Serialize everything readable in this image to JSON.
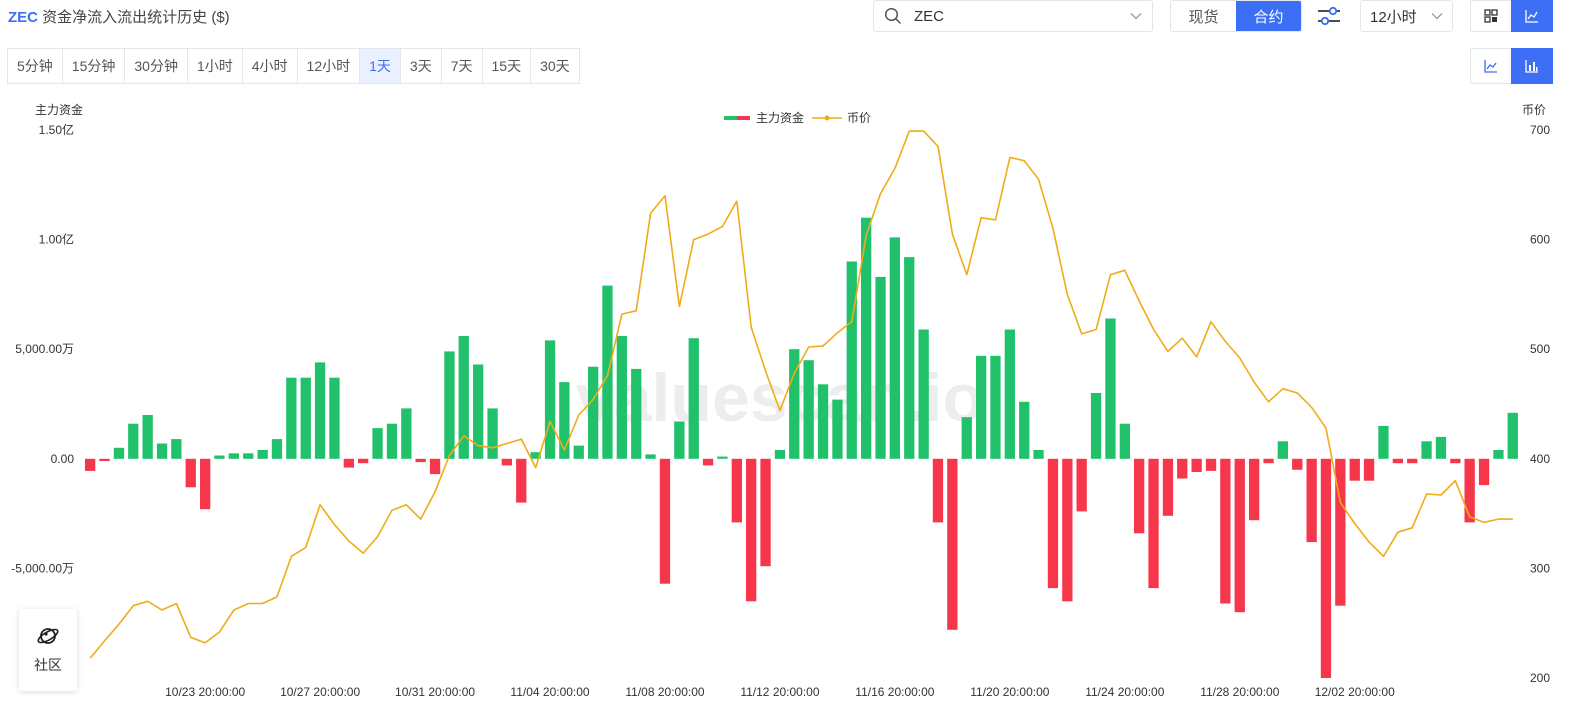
{
  "header": {
    "coin": "ZEC",
    "title_rest": " 资金净流入流出统计历史 ($)",
    "search_value": "ZEC",
    "market_tabs": [
      {
        "label": "现货",
        "active": false
      },
      {
        "label": "合约",
        "active": true
      }
    ],
    "interval_value": "12小时"
  },
  "periods": [
    {
      "label": "5分钟",
      "active": false
    },
    {
      "label": "15分钟",
      "active": false
    },
    {
      "label": "30分钟",
      "active": false
    },
    {
      "label": "1小时",
      "active": false
    },
    {
      "label": "4小时",
      "active": false
    },
    {
      "label": "12小时",
      "active": false
    },
    {
      "label": "1天",
      "active": true
    },
    {
      "label": "3天",
      "active": false
    },
    {
      "label": "7天",
      "active": false
    },
    {
      "label": "15天",
      "active": false
    },
    {
      "label": "30天",
      "active": false
    }
  ],
  "icons": {
    "search": "search-icon",
    "chevron": "chevron-down-icon",
    "filter": "sliders-icon",
    "grid_view": "grid-view-icon",
    "line_view": "line-chart-icon",
    "bar_view": "bar-chart-icon",
    "community": "planet-icon"
  },
  "colors": {
    "accent": "#3c6ff5",
    "inflow": "#21c16b",
    "outflow": "#f6364a",
    "price": "#f0ac18"
  },
  "community_label": "社区",
  "watermark": "valuescan.io",
  "chart_data": {
    "type": "bar",
    "title": "",
    "legend": [
      {
        "name": "主力资金",
        "type": "bar"
      },
      {
        "name": "币价",
        "type": "line"
      }
    ],
    "legend_position": "top-center",
    "y_left": {
      "label": "主力资金",
      "ticks": [
        15000,
        10000,
        5000,
        0,
        -5000
      ],
      "tick_labels": [
        "1.50亿",
        "1.00亿",
        "5,000.00万",
        "0.00",
        "-5,000.00万"
      ],
      "range": [
        -10000,
        15000
      ],
      "unit": "万"
    },
    "y_right": {
      "label": "币价",
      "ticks": [
        700,
        600,
        500,
        400,
        300,
        200
      ],
      "range": [
        200,
        700
      ]
    },
    "x_tick_labels": [
      "10/23 20:00:00",
      "10/27 20:00:00",
      "10/31 20:00:00",
      "11/04 20:00:00",
      "11/08 20:00:00",
      "11/12 20:00:00",
      "11/16 20:00:00",
      "11/20 20:00:00",
      "11/24 20:00:00",
      "11/28 20:00:00",
      "12/02 20:00:00"
    ],
    "x_tick_index": [
      8,
      16,
      24,
      32,
      40,
      48,
      56,
      64,
      72,
      80,
      88
    ],
    "net_flow": [
      -550,
      -100,
      500,
      1600,
      2000,
      700,
      900,
      -1300,
      -2300,
      150,
      250,
      250,
      400,
      900,
      3700,
      3700,
      4400,
      3700,
      -400,
      -200,
      1400,
      1600,
      2300,
      -150,
      -700,
      4900,
      5600,
      4300,
      2300,
      -300,
      -2000,
      300,
      5400,
      3500,
      600,
      4200,
      7900,
      5600,
      4100,
      200,
      -5700,
      1700,
      5500,
      -300,
      100,
      -2900,
      -6500,
      -4900,
      400,
      5000,
      4500,
      3400,
      2700,
      9000,
      11000,
      8300,
      10100,
      9200,
      5900,
      -2900,
      -7800,
      1900,
      4700,
      4700,
      5900,
      2600,
      400,
      -5900,
      -6500,
      -2400,
      3000,
      6400,
      1600,
      -3400,
      -5900,
      -2600,
      -900,
      -600,
      -550,
      -6600,
      -7000,
      -2800,
      -200,
      800,
      -500,
      -3800,
      -10000,
      -6700,
      -1000,
      -1000,
      1500,
      -200,
      -200,
      800,
      1000,
      -200,
      -2900,
      -1200,
      400,
      2100
    ],
    "price": [
      218,
      234,
      249,
      266,
      270,
      262,
      268,
      237,
      232,
      242,
      262,
      268,
      268,
      274,
      311,
      319,
      358,
      340,
      325,
      314,
      329,
      353,
      358,
      345,
      370,
      403,
      421,
      412,
      410,
      414,
      418,
      392,
      434,
      408,
      440,
      454,
      476,
      532,
      535,
      624,
      640,
      539,
      600,
      605,
      612,
      635,
      520,
      480,
      444,
      478,
      502,
      503,
      515,
      525,
      604,
      642,
      665,
      699,
      699,
      685,
      605,
      568,
      620,
      618,
      675,
      672,
      655,
      610,
      550,
      514,
      518,
      568,
      572,
      544,
      518,
      498,
      510,
      493,
      525,
      507,
      492,
      470,
      452,
      464,
      460,
      447,
      428,
      360,
      341,
      324,
      311,
      333,
      337,
      368,
      367,
      380,
      347,
      342,
      345,
      345
    ]
  }
}
